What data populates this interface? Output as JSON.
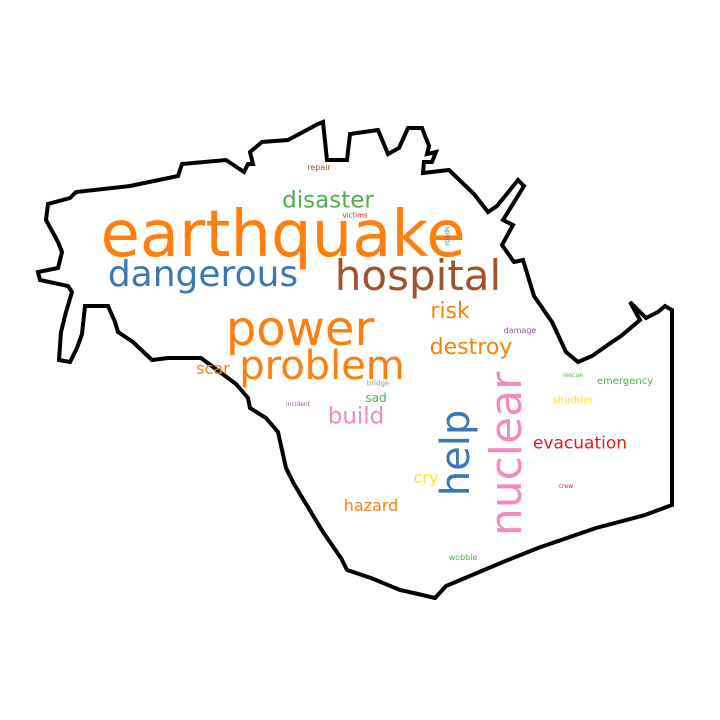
{
  "words": [
    {
      "key": "earthquake",
      "text": "earthquake",
      "color": "#ff7f0e"
    },
    {
      "key": "hospital",
      "text": "hospital",
      "color": "#a0522d"
    },
    {
      "key": "dangerous",
      "text": "dangerous",
      "color": "#3a78b4"
    },
    {
      "key": "power",
      "text": "power",
      "color": "#ff7f0e"
    },
    {
      "key": "problem",
      "text": "problem",
      "color": "#ff7f0e"
    },
    {
      "key": "nuclear",
      "text": "nuclear",
      "color": "#f28ac2"
    },
    {
      "key": "help",
      "text": "help",
      "color": "#3a78b4"
    },
    {
      "key": "disaster",
      "text": "disaster",
      "color": "#4daf4a"
    },
    {
      "key": "destroy",
      "text": "destroy",
      "color": "#ff7f0e"
    },
    {
      "key": "risk",
      "text": "risk",
      "color": "#ff7f0e"
    },
    {
      "key": "build",
      "text": "build",
      "color": "#f28ac2"
    },
    {
      "key": "evacuation",
      "text": "evacuation",
      "color": "#e41a1c"
    },
    {
      "key": "hazard",
      "text": "hazard",
      "color": "#ff7f0e"
    },
    {
      "key": "scar",
      "text": "scar",
      "color": "#ff7f0e"
    },
    {
      "key": "cry",
      "text": "cry",
      "color": "#ffe033"
    },
    {
      "key": "sad",
      "text": "sad",
      "color": "#4daf4a"
    },
    {
      "key": "emergency",
      "text": "emergency",
      "color": "#4daf4a"
    },
    {
      "key": "shudder",
      "text": "shudder",
      "color": "#ffe033"
    },
    {
      "key": "damage",
      "text": "damage",
      "color": "#984ea3"
    },
    {
      "key": "repair",
      "text": "repair",
      "color": "#a0522d"
    },
    {
      "key": "victims",
      "text": "victims",
      "color": "#e41a1c"
    },
    {
      "key": "roads",
      "text": "roads",
      "color": "#3a78b4"
    },
    {
      "key": "bridge",
      "text": "bridge",
      "color": "#999999"
    },
    {
      "key": "incident",
      "text": "incident",
      "color": "#984ea3"
    },
    {
      "key": "rescue",
      "text": "rescue",
      "color": "#4daf4a"
    },
    {
      "key": "crew",
      "text": "crew",
      "color": "#e41a1c"
    },
    {
      "key": "wobble",
      "text": "wobble",
      "color": "#4daf4a"
    }
  ]
}
